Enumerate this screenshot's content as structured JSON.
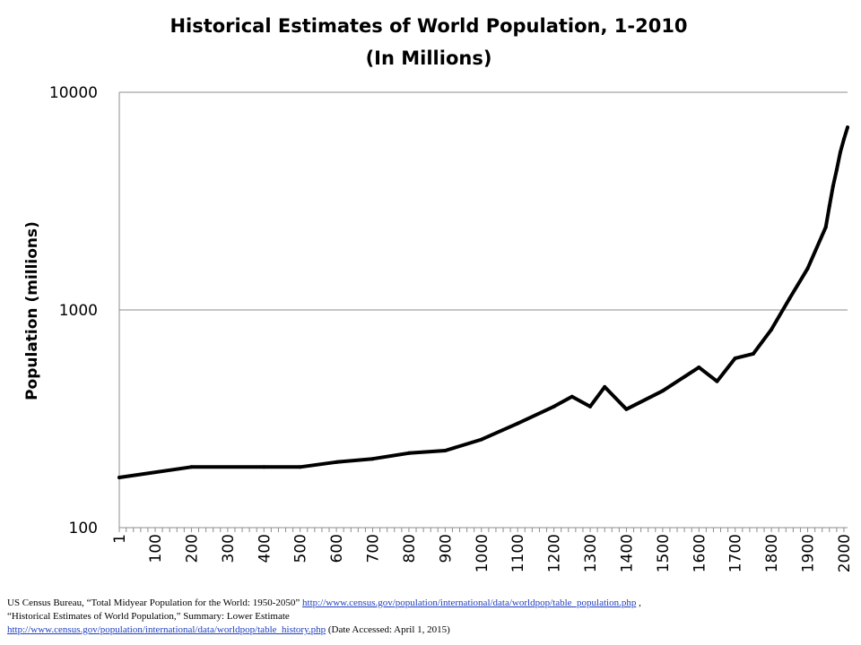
{
  "chart_data": {
    "type": "line",
    "title": "Historical Estimates of World Population, 1-2010",
    "subtitle": "(In Millions)",
    "xlabel": "",
    "ylabel": "Population (millions)",
    "yscale": "log",
    "ylim": [
      100,
      10000
    ],
    "yticks": [
      "100",
      "1000",
      "10000"
    ],
    "xlim": [
      1,
      2010
    ],
    "xticks": [
      "1",
      "100",
      "200",
      "300",
      "400",
      "500",
      "600",
      "700",
      "800",
      "900",
      "1000",
      "1100",
      "1200",
      "1300",
      "1400",
      "1500",
      "1600",
      "1700",
      "1800",
      "1900",
      "2000"
    ],
    "grid": "horizontal major",
    "legend": "none",
    "line_color": "#000000",
    "series": [
      {
        "x": [
          1,
          200,
          400,
          500,
          600,
          700,
          800,
          900,
          1000,
          1100,
          1200,
          1250,
          1300,
          1340,
          1400,
          1500,
          1600,
          1650,
          1700,
          1750,
          1800,
          1850,
          1900,
          1950,
          1960,
          1970,
          1980,
          1990,
          2000,
          2010
        ],
        "y": [
          170,
          190,
          190,
          190,
          200,
          207,
          220,
          226,
          254,
          301,
          360,
          400,
          360,
          443,
          350,
          425,
          545,
          470,
          600,
          629,
          813,
          1128,
          1550,
          2400,
          3000,
          3700,
          4400,
          5300,
          6100,
          6900
        ]
      }
    ]
  },
  "source": {
    "line1_text": "US Census Bureau, “Total Midyear Population for the World: 1950-2050” ",
    "line1_link": "http://www.census.gov/population/international/data/worldpop/table_population.php",
    "line1_end": " ,",
    "line2_text": "“Historical Estimates of World Population,” Summary: Lower Estimate",
    "line3_link": "http://www.census.gov/population/international/data/worldpop/table_history.php",
    "line3_text": " (Date Accessed: April  1, 2015)"
  }
}
